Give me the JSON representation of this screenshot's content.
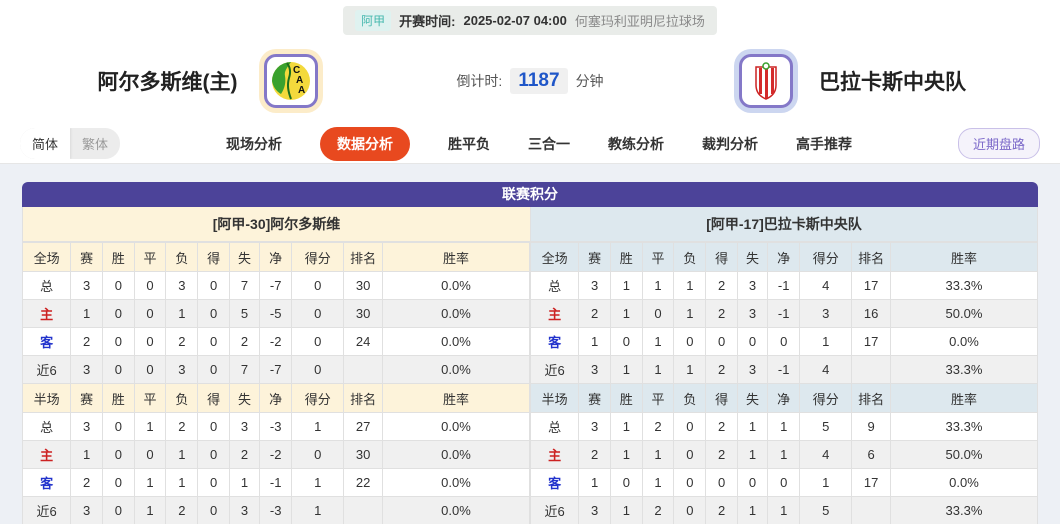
{
  "match_bar": {
    "league_tag": "阿甲",
    "kickoff_label": "开赛时间:",
    "kickoff_time": "2025-02-07 04:00",
    "venue": "何塞玛利亚明尼拉球场"
  },
  "teams": {
    "home": {
      "name": "阿尔多斯维(主)",
      "logo_initials": "CAA"
    },
    "away": {
      "name": "巴拉卡斯中央队"
    }
  },
  "countdown": {
    "label": "倒计时:",
    "value": "1187",
    "unit": "分钟"
  },
  "nav": {
    "lang_toggle": [
      {
        "label": "简体",
        "active": true
      },
      {
        "label": "繁体",
        "active": false
      }
    ],
    "tabs": [
      {
        "label": "现场分析",
        "active": false
      },
      {
        "label": "数据分析",
        "active": true
      },
      {
        "label": "胜平负",
        "active": false
      },
      {
        "label": "三合一",
        "active": false
      },
      {
        "label": "教练分析",
        "active": false
      },
      {
        "label": "裁判分析",
        "active": false
      },
      {
        "label": "高手推荐",
        "active": false
      }
    ],
    "recent_button": "近期盘路"
  },
  "league_table": {
    "title": "联赛积分",
    "home_header": "[阿甲-30]阿尔多斯维",
    "away_header": "[阿甲-17]巴拉卡斯中央队",
    "columns_full": [
      "全场",
      "赛",
      "胜",
      "平",
      "负",
      "得",
      "失",
      "净",
      "得分",
      "排名",
      "胜率"
    ],
    "columns_half": [
      "半场",
      "赛",
      "胜",
      "平",
      "负",
      "得",
      "失",
      "净",
      "得分",
      "排名",
      "胜率"
    ],
    "home_full": [
      [
        "总",
        "3",
        "0",
        "0",
        "3",
        "0",
        "7",
        "-7",
        "0",
        "30",
        "0.0%"
      ],
      [
        "主",
        "1",
        "0",
        "0",
        "1",
        "0",
        "5",
        "-5",
        "0",
        "30",
        "0.0%"
      ],
      [
        "客",
        "2",
        "0",
        "0",
        "2",
        "0",
        "2",
        "-2",
        "0",
        "24",
        "0.0%"
      ],
      [
        "近6",
        "3",
        "0",
        "0",
        "3",
        "0",
        "7",
        "-7",
        "0",
        "",
        "0.0%"
      ]
    ],
    "home_half": [
      [
        "总",
        "3",
        "0",
        "1",
        "2",
        "0",
        "3",
        "-3",
        "1",
        "27",
        "0.0%"
      ],
      [
        "主",
        "1",
        "0",
        "0",
        "1",
        "0",
        "2",
        "-2",
        "0",
        "30",
        "0.0%"
      ],
      [
        "客",
        "2",
        "0",
        "1",
        "1",
        "0",
        "1",
        "-1",
        "1",
        "22",
        "0.0%"
      ],
      [
        "近6",
        "3",
        "0",
        "1",
        "2",
        "0",
        "3",
        "-3",
        "1",
        "",
        "0.0%"
      ]
    ],
    "away_full": [
      [
        "总",
        "3",
        "1",
        "1",
        "1",
        "2",
        "3",
        "-1",
        "4",
        "17",
        "33.3%"
      ],
      [
        "主",
        "2",
        "1",
        "0",
        "1",
        "2",
        "3",
        "-1",
        "3",
        "16",
        "50.0%"
      ],
      [
        "客",
        "1",
        "0",
        "1",
        "0",
        "0",
        "0",
        "0",
        "1",
        "17",
        "0.0%"
      ],
      [
        "近6",
        "3",
        "1",
        "1",
        "1",
        "2",
        "3",
        "-1",
        "4",
        "",
        "33.3%"
      ]
    ],
    "away_half": [
      [
        "总",
        "3",
        "1",
        "2",
        "0",
        "2",
        "1",
        "1",
        "5",
        "9",
        "33.3%"
      ],
      [
        "主",
        "2",
        "1",
        "1",
        "0",
        "2",
        "1",
        "1",
        "4",
        "6",
        "50.0%"
      ],
      [
        "客",
        "1",
        "0",
        "1",
        "0",
        "0",
        "0",
        "0",
        "1",
        "17",
        "0.0%"
      ],
      [
        "近6",
        "3",
        "1",
        "2",
        "0",
        "2",
        "1",
        "1",
        "5",
        "",
        "33.3%"
      ]
    ]
  },
  "colors": {
    "purple": "#4c4399",
    "tab_active": "#e8491f",
    "home_red": "#cc2222",
    "away_blue": "#2233cc",
    "tag_teal": "#45b8ae",
    "countdown_blue": "#1f56c8",
    "cream": "#fdf3da",
    "lightblue": "#dde8ee"
  }
}
